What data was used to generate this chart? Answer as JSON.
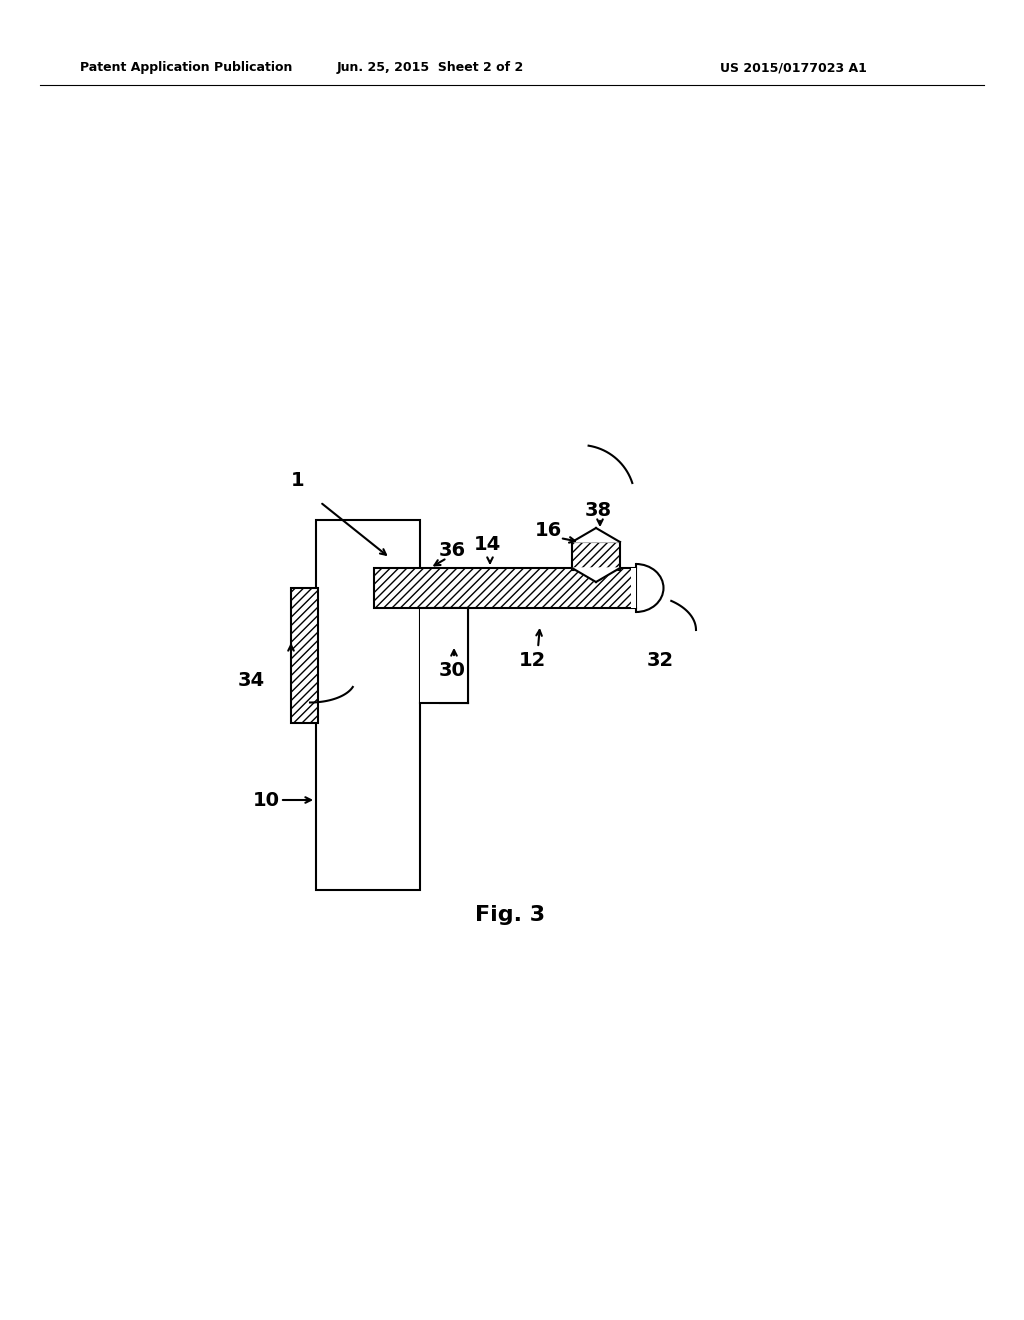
{
  "bg_color": "#ffffff",
  "line_color": "#000000",
  "header_left": "Patent Application Publication",
  "header_mid": "Jun. 25, 2015  Sheet 2 of 2",
  "header_right": "US 2015/0177023 A1",
  "fig_label": "Fig. 3",
  "lw": 1.5
}
